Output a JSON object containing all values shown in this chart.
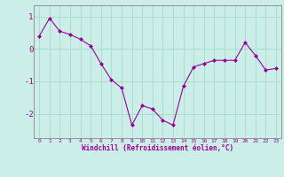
{
  "x": [
    0,
    1,
    2,
    3,
    4,
    5,
    6,
    7,
    8,
    9,
    10,
    11,
    12,
    13,
    14,
    15,
    16,
    17,
    18,
    19,
    20,
    21,
    22,
    23
  ],
  "y": [
    0.4,
    0.95,
    0.55,
    0.45,
    0.3,
    0.1,
    -0.45,
    -0.95,
    -1.2,
    -2.35,
    -1.75,
    -1.85,
    -2.2,
    -2.35,
    -1.15,
    -0.55,
    -0.45,
    -0.35,
    -0.35,
    -0.35,
    0.2,
    -0.2,
    -0.65,
    -0.6
  ],
  "line_color": "#990099",
  "marker": "D",
  "marker_size": 2,
  "bg_color": "#cceee8",
  "grid_color": "#aaddcc",
  "xlabel": "Windchill (Refroidissement éolien,°C)",
  "xlabel_color": "#990099",
  "tick_color": "#990099",
  "ylim": [
    -2.75,
    1.35
  ],
  "xlim": [
    -0.5,
    23.5
  ],
  "yticks": [
    -2,
    -1,
    0,
    1
  ],
  "xticks": [
    0,
    1,
    2,
    3,
    4,
    5,
    6,
    7,
    8,
    9,
    10,
    11,
    12,
    13,
    14,
    15,
    16,
    17,
    18,
    19,
    20,
    21,
    22,
    23
  ],
  "xtick_labels": [
    "0",
    "1",
    "2",
    "3",
    "4",
    "5",
    "6",
    "7",
    "8",
    "9",
    "10",
    "11",
    "12",
    "13",
    "14",
    "15",
    "16",
    "17",
    "18",
    "19",
    "20",
    "21",
    "22",
    "23"
  ]
}
